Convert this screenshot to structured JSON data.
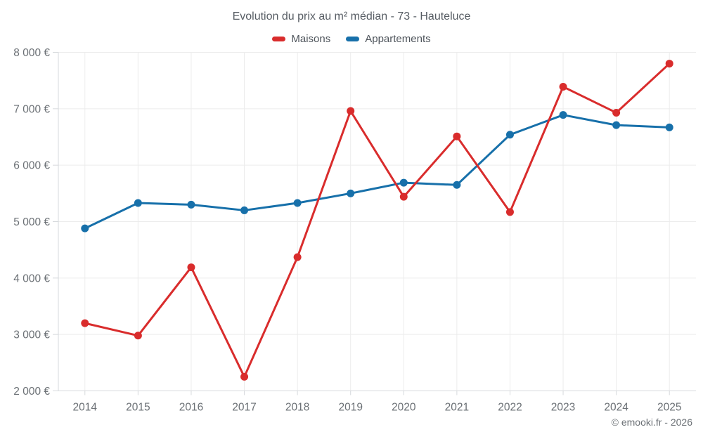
{
  "footer": {
    "text": "© emooki.fr - 2026"
  },
  "chart_data": {
    "type": "line",
    "title": "Evolution du prix au m² médian - 73 - Hauteluce",
    "categories": [
      "2014",
      "2015",
      "2016",
      "2017",
      "2018",
      "2019",
      "2020",
      "2021",
      "2022",
      "2023",
      "2024",
      "2025"
    ],
    "series": [
      {
        "name": "Maisons",
        "color": "#d92c2c",
        "values": [
          3200,
          2980,
          4190,
          2250,
          4370,
          6960,
          5440,
          6510,
          5170,
          7390,
          6930,
          7800
        ]
      },
      {
        "name": "Appartements",
        "color": "#1770aa",
        "values": [
          4880,
          5330,
          5300,
          5200,
          5330,
          5500,
          5690,
          5650,
          6540,
          6890,
          6710,
          6670
        ]
      }
    ],
    "xlabel": "",
    "ylabel": "",
    "ylim": [
      2000,
      8000
    ],
    "ytick_step": 1000,
    "ytick_suffix": " €",
    "yticks_labels": [
      "2 000 €",
      "3 000 €",
      "4 000 €",
      "5 000 €",
      "6 000 €",
      "7 000 €",
      "8 000 €"
    ],
    "grid": true,
    "legend_position": "top",
    "draw_order_top_series": "Maisons",
    "point_radius": 5.5,
    "line_width": 3,
    "grid_color": "#ececec",
    "axis_color": "#d6d9dc",
    "tick_label_color": "#6b7075"
  }
}
